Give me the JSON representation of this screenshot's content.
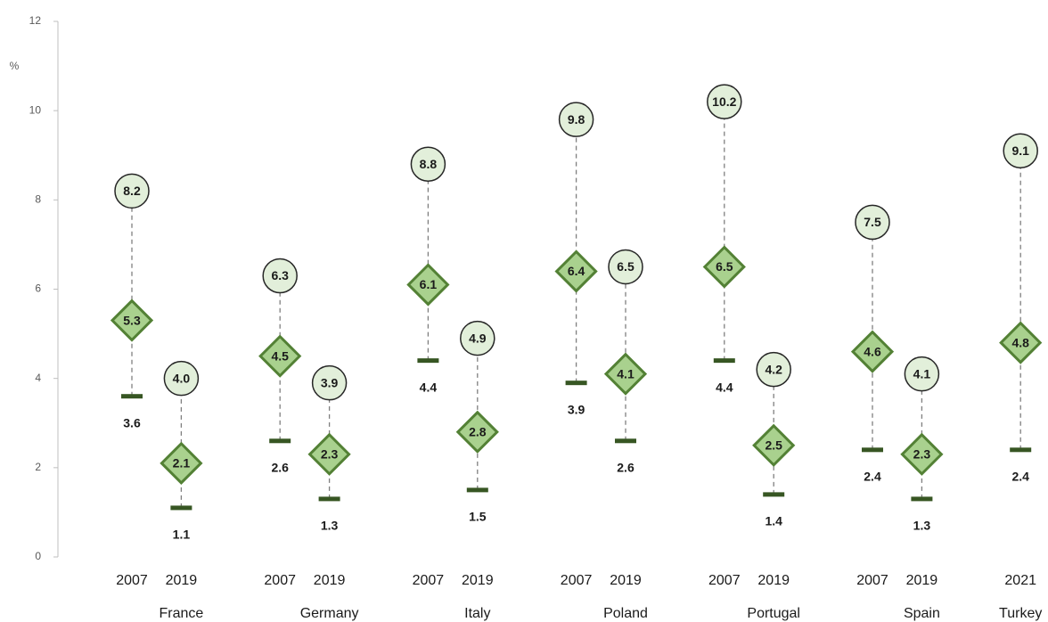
{
  "chart_data": {
    "type": "range",
    "y_label": "%",
    "ylim": [
      0,
      12
    ],
    "yticks": [
      0,
      2,
      4,
      6,
      8,
      10,
      12
    ],
    "colors": {
      "high": "#e2efda",
      "mid": "#a9d18e",
      "mid_edge": "#538135",
      "low": "#375623"
    },
    "groups": [
      {
        "name": "France",
        "categories": [
          "2007",
          "2019"
        ],
        "high": {
          "values": [
            8.2,
            4.0
          ],
          "value_labels": [
            "8.2",
            "4.0"
          ]
        },
        "mid": {
          "values": [
            5.3,
            2.1
          ],
          "value_labels": [
            "5.3",
            "2.1"
          ]
        },
        "low": {
          "values": [
            3.6,
            1.1
          ],
          "value_labels": [
            "3.6",
            "1.1"
          ]
        }
      },
      {
        "name": "Germany",
        "categories": [
          "2007",
          "2019"
        ],
        "high": {
          "values": [
            6.3,
            3.9
          ],
          "value_labels": [
            "6.3",
            "3.9"
          ]
        },
        "mid": {
          "values": [
            4.5,
            2.3
          ],
          "value_labels": [
            "4.5",
            "2.3"
          ]
        },
        "low": {
          "values": [
            2.6,
            1.3
          ],
          "value_labels": [
            "2.6",
            "1.3"
          ]
        }
      },
      {
        "name": "Italy",
        "categories": [
          "2007",
          "2019"
        ],
        "high": {
          "values": [
            8.8,
            4.9
          ],
          "value_labels": [
            "8.8",
            "4.9"
          ]
        },
        "mid": {
          "values": [
            6.1,
            2.8
          ],
          "value_labels": [
            "6.1",
            "2.8"
          ]
        },
        "low": {
          "values": [
            4.4,
            1.5
          ],
          "value_labels": [
            "4.4",
            "1.5"
          ]
        }
      },
      {
        "name": "Poland",
        "categories": [
          "2007",
          "2019"
        ],
        "high": {
          "values": [
            9.8,
            6.5
          ],
          "value_labels": [
            "9.8",
            "6.5"
          ]
        },
        "mid": {
          "values": [
            6.4,
            4.1
          ],
          "value_labels": [
            "6.4",
            "4.1"
          ]
        },
        "low": {
          "values": [
            3.9,
            2.6
          ],
          "value_labels": [
            "3.9",
            "2.6"
          ]
        }
      },
      {
        "name": "Portugal",
        "categories": [
          "2007",
          "2019"
        ],
        "high": {
          "values": [
            10.2,
            4.2
          ],
          "value_labels": [
            "10.2",
            "4.2"
          ]
        },
        "mid": {
          "values": [
            6.5,
            2.5
          ],
          "value_labels": [
            "6.5",
            "2.5"
          ]
        },
        "low": {
          "values": [
            4.4,
            1.4
          ],
          "value_labels": [
            "4.4",
            "1.4"
          ]
        }
      },
      {
        "name": "Spain",
        "categories": [
          "2007",
          "2019"
        ],
        "high": {
          "values": [
            7.5,
            4.1
          ],
          "value_labels": [
            "7.5",
            "4.1"
          ]
        },
        "mid": {
          "values": [
            4.6,
            2.3
          ],
          "value_labels": [
            "4.6",
            "2.3"
          ]
        },
        "low": {
          "values": [
            2.4,
            1.3
          ],
          "value_labels": [
            "2.4",
            "1.3"
          ]
        }
      },
      {
        "name": "Turkey",
        "categories": [
          "2021"
        ],
        "high": {
          "values": [
            9.1
          ],
          "value_labels": [
            "9.1"
          ]
        },
        "mid": {
          "values": [
            4.8
          ],
          "value_labels": [
            "4.8"
          ]
        },
        "low": {
          "values": [
            2.4
          ],
          "value_labels": [
            "2.4"
          ]
        }
      }
    ]
  }
}
